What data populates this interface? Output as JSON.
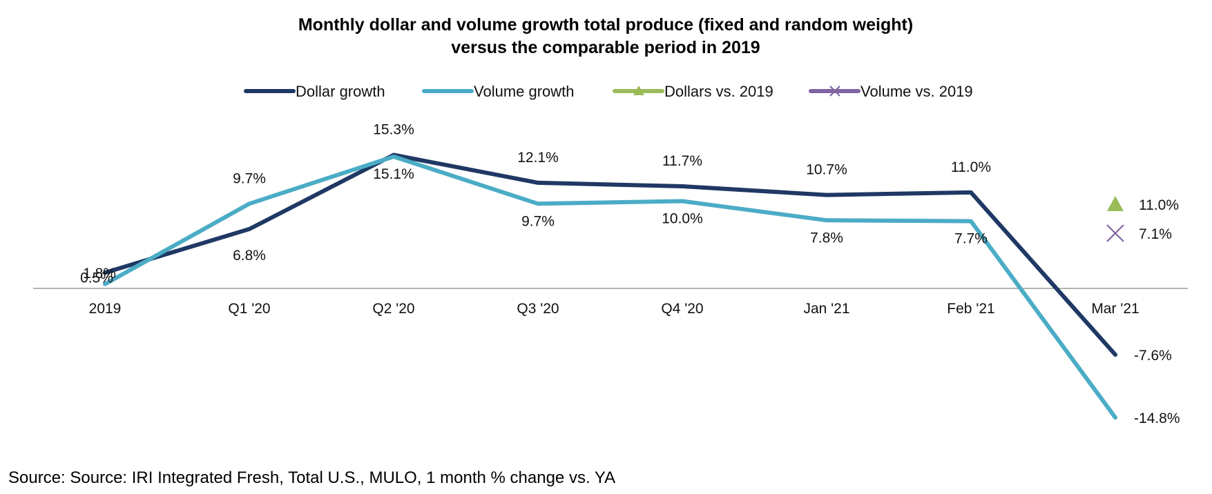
{
  "chart_data": {
    "type": "line",
    "title": "Monthly dollar and volume growth  total produce (fixed and random weight)",
    "subtitle": "versus the comparable period in 2019",
    "categories": [
      "2019",
      "Q1 '20",
      "Q2 '20",
      "Q3 '20",
      "Q4 '20",
      "Jan '21",
      "Feb '21",
      "Mar '21"
    ],
    "series": [
      {
        "name": "Dollar growth",
        "color": "#1f3864",
        "values": [
          1.8,
          6.8,
          15.3,
          12.1,
          11.7,
          10.7,
          11.0,
          -7.6
        ],
        "labels": [
          "1.8%",
          "6.8%",
          "15.3%",
          "12.1%",
          "11.7%",
          "10.7%",
          "11.0%",
          "-7.6%"
        ]
      },
      {
        "name": "Volume growth",
        "color": "#4bacc6",
        "values": [
          0.5,
          9.7,
          15.1,
          9.7,
          10.0,
          7.8,
          7.7,
          -14.8
        ],
        "labels": [
          "0.5%",
          "9.7%",
          "15.1%",
          "9.7%",
          "10.0%",
          "7.8%",
          "7.7%",
          "-14.8%"
        ]
      },
      {
        "name": "Dollars vs. 2019",
        "color": "#9bbb59",
        "marker": "triangle",
        "points": [
          {
            "category": "Mar '21",
            "value": 11.0,
            "label": "11.0%"
          }
        ]
      },
      {
        "name": "Volume vs. 2019",
        "color": "#8064a2",
        "marker": "x",
        "points": [
          {
            "category": "Mar '21",
            "value": 7.1,
            "label": "7.1%"
          }
        ]
      }
    ],
    "ylim": [
      -17,
      20
    ],
    "axis_line_at": 0,
    "grid": false,
    "legend_position": "top-center",
    "xlabel": "",
    "ylabel": ""
  },
  "source": "Source: Source: IRI Integrated Fresh, Total U.S., MULO, 1 month % change vs. YA"
}
